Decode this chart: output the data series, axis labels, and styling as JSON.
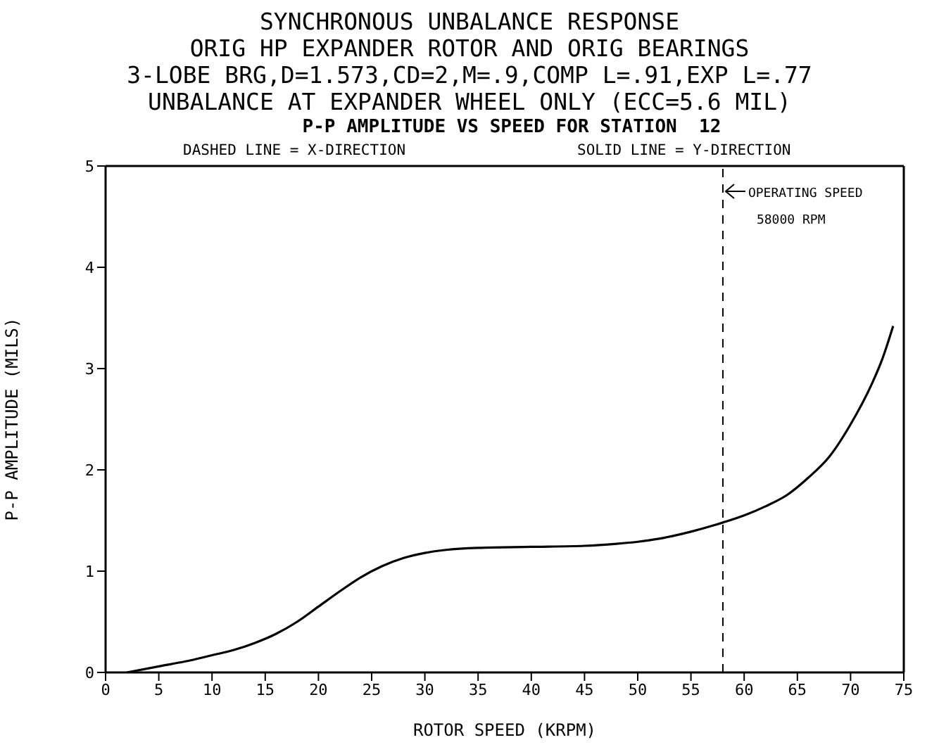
{
  "chart_data": {
    "type": "line",
    "title": "SYNCHRONOUS UNBALANCE RESPONSE\nORIG HP EXPANDER ROTOR AND ORIG BEARINGS\n3-LOBE BRG,D=1.573,CD=2,M=.9,COMP L=.91,EXP L=.77\nUNBALANCE AT EXPANDER WHEEL ONLY (ECC=5.6 MIL)",
    "subtitle": "P-P AMPLITUDE VS SPEED FOR STATION  12",
    "annotations": [
      "DASHED LINE = X-DIRECTION",
      "SOLID LINE = Y-DIRECTION"
    ],
    "xlabel": "ROTOR SPEED (KRPM)",
    "ylabel": "P-P AMPLITUDE (MILS)",
    "x": [
      2,
      5,
      8,
      10,
      12,
      14,
      16,
      18,
      20,
      22,
      24,
      26,
      28,
      30,
      32,
      35,
      40,
      45,
      48,
      50,
      52,
      55,
      58,
      60,
      62,
      64,
      66,
      68,
      70,
      72,
      73,
      74
    ],
    "series": [
      {
        "color": "#000000",
        "values": [
          0,
          0.06,
          0.12,
          0.17,
          0.22,
          0.29,
          0.38,
          0.5,
          0.65,
          0.8,
          0.94,
          1.05,
          1.13,
          1.18,
          1.21,
          1.23,
          1.24,
          1.25,
          1.27,
          1.29,
          1.32,
          1.39,
          1.48,
          1.55,
          1.64,
          1.75,
          1.92,
          2.13,
          2.45,
          2.85,
          3.1,
          3.42
        ]
      }
    ],
    "xlim": [
      0,
      75
    ],
    "xticks": [
      0,
      5,
      10,
      15,
      20,
      25,
      30,
      35,
      40,
      45,
      50,
      55,
      60,
      65,
      70,
      75
    ],
    "ylim": [
      0,
      5
    ],
    "yticks": [
      0,
      1,
      2,
      3,
      4,
      5
    ],
    "ref_lines": [
      {
        "axis": "x",
        "value": 58,
        "label": "OPERATING SPEED\n58000 RPM",
        "line_style": "dashed",
        "color": "#000000"
      }
    ],
    "marker": "none",
    "line_style": "solid"
  }
}
